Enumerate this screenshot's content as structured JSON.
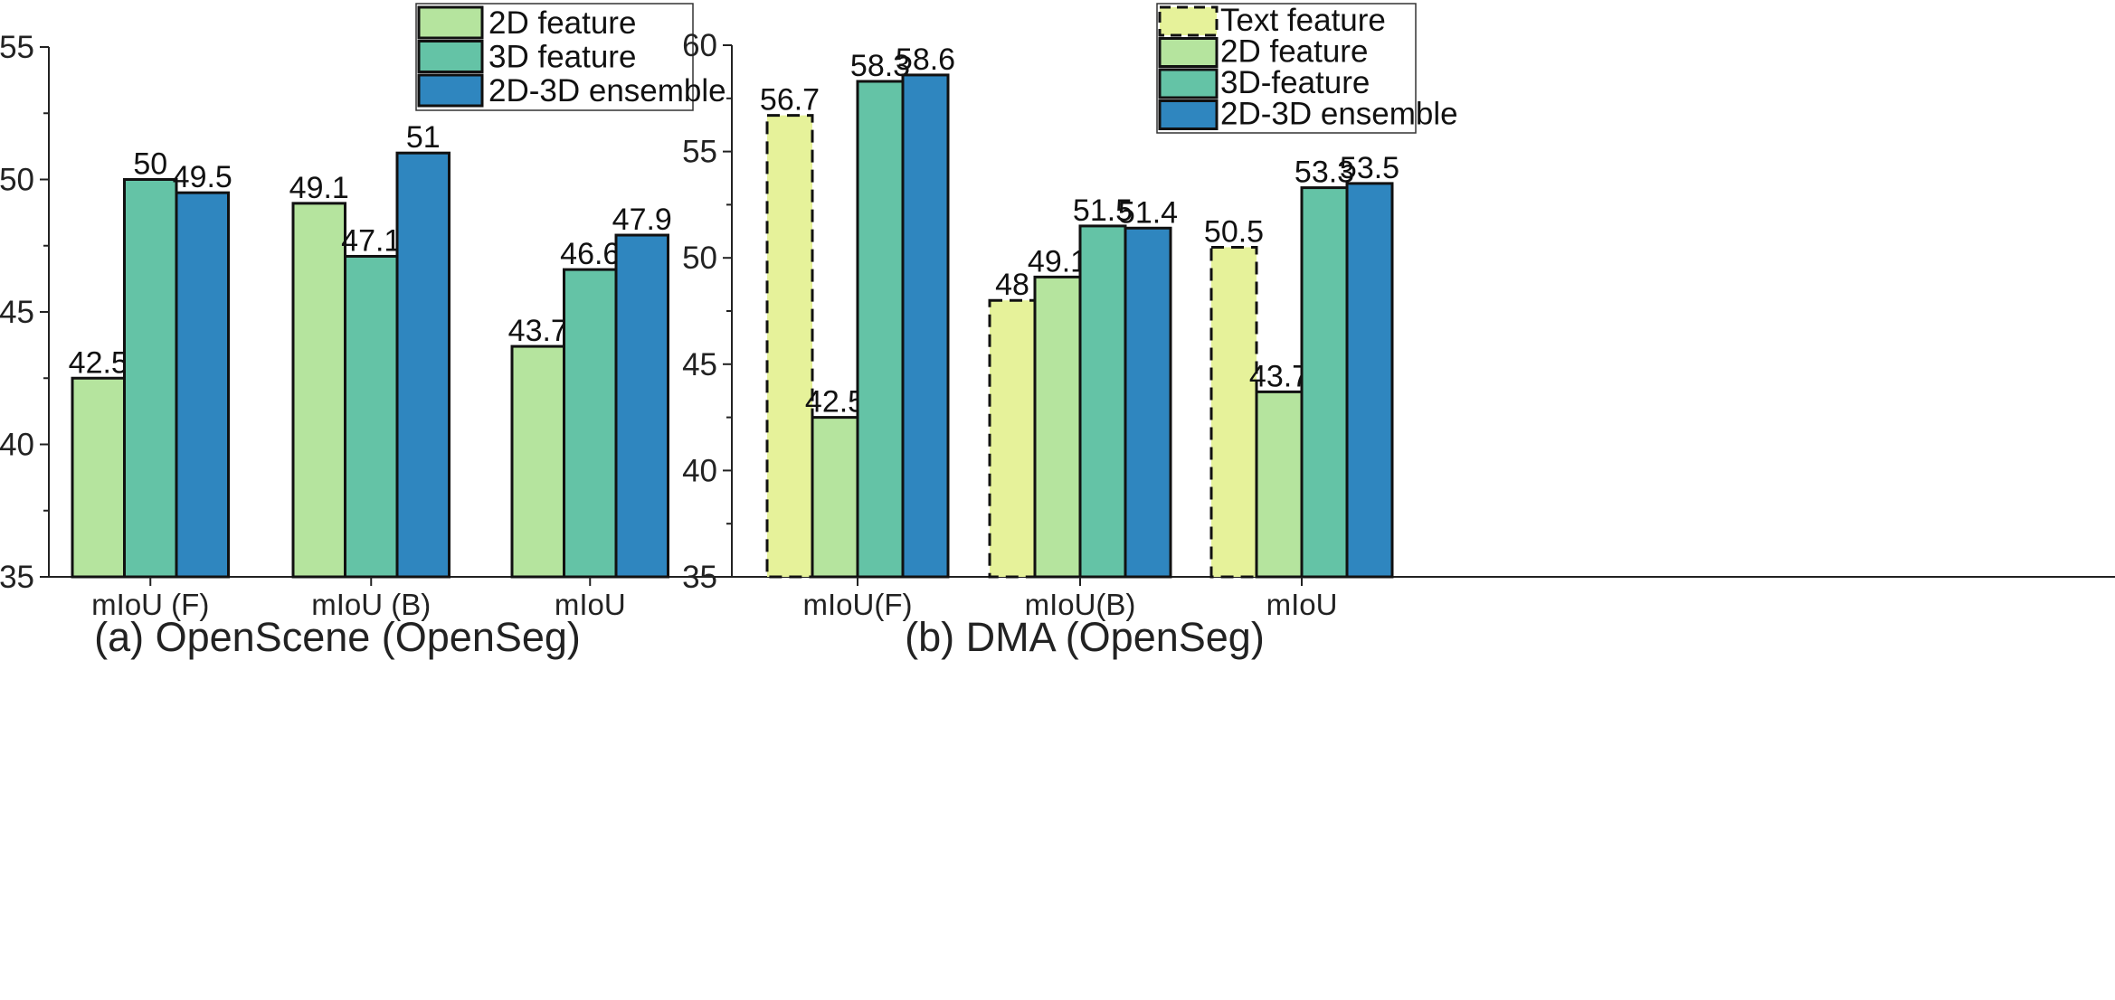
{
  "chart_data": [
    {
      "type": "bar",
      "title": "(a) OpenScene (OpenSeg)",
      "xlabel": "",
      "ylabel": "",
      "ylim": [
        35,
        55
      ],
      "yticks": [
        35,
        40,
        45,
        50,
        55
      ],
      "grid": false,
      "legend_position": "top-right",
      "categories": [
        "mIoU (F)",
        "mIoU (B)",
        "mIoU"
      ],
      "series": [
        {
          "name": "2D feature",
          "values": [
            42.5,
            49.1,
            43.7
          ],
          "color": "#b5e49e",
          "dashed": false
        },
        {
          "name": "3D feature",
          "values": [
            50,
            47.1,
            46.6
          ],
          "color": "#64c3a6",
          "dashed": false
        },
        {
          "name": "2D-3D ensemble",
          "values": [
            49.5,
            51,
            47.9
          ],
          "color": "#2f86bf",
          "dashed": false
        }
      ],
      "data_labels": [
        [
          "42.5",
          "49.1",
          "43.7"
        ],
        [
          "50",
          "47.1",
          "46.6"
        ],
        [
          "49.5",
          "51",
          "47.9"
        ]
      ]
    },
    {
      "type": "bar",
      "title": "(b) DMA (OpenSeg)",
      "xlabel": "",
      "ylabel": "",
      "ylim": [
        35,
        60
      ],
      "yticks": [
        35,
        40,
        45,
        50,
        55,
        60
      ],
      "grid": false,
      "legend_position": "top-right",
      "categories": [
        "mIoU(F)",
        "mIoU(B)",
        "mIoU"
      ],
      "series": [
        {
          "name": "Text feature",
          "values": [
            56.7,
            48,
            50.5
          ],
          "color": "#e6f29a",
          "dashed": true
        },
        {
          "name": "2D feature",
          "values": [
            42.5,
            49.1,
            43.7
          ],
          "color": "#b5e49e",
          "dashed": false
        },
        {
          "name": "3D-feature",
          "values": [
            58.3,
            51.5,
            53.3
          ],
          "color": "#64c3a6",
          "dashed": false
        },
        {
          "name": "2D-3D ensemble",
          "values": [
            58.6,
            51.4,
            53.5
          ],
          "color": "#2f86bf",
          "dashed": false
        }
      ],
      "data_labels": [
        [
          "56.7",
          "48",
          "50.5"
        ],
        [
          "42.5",
          "49.1",
          "43.7"
        ],
        [
          "58.3",
          "51.5",
          "53.3"
        ],
        [
          "58.6",
          "51.4",
          "53.5"
        ]
      ]
    }
  ]
}
